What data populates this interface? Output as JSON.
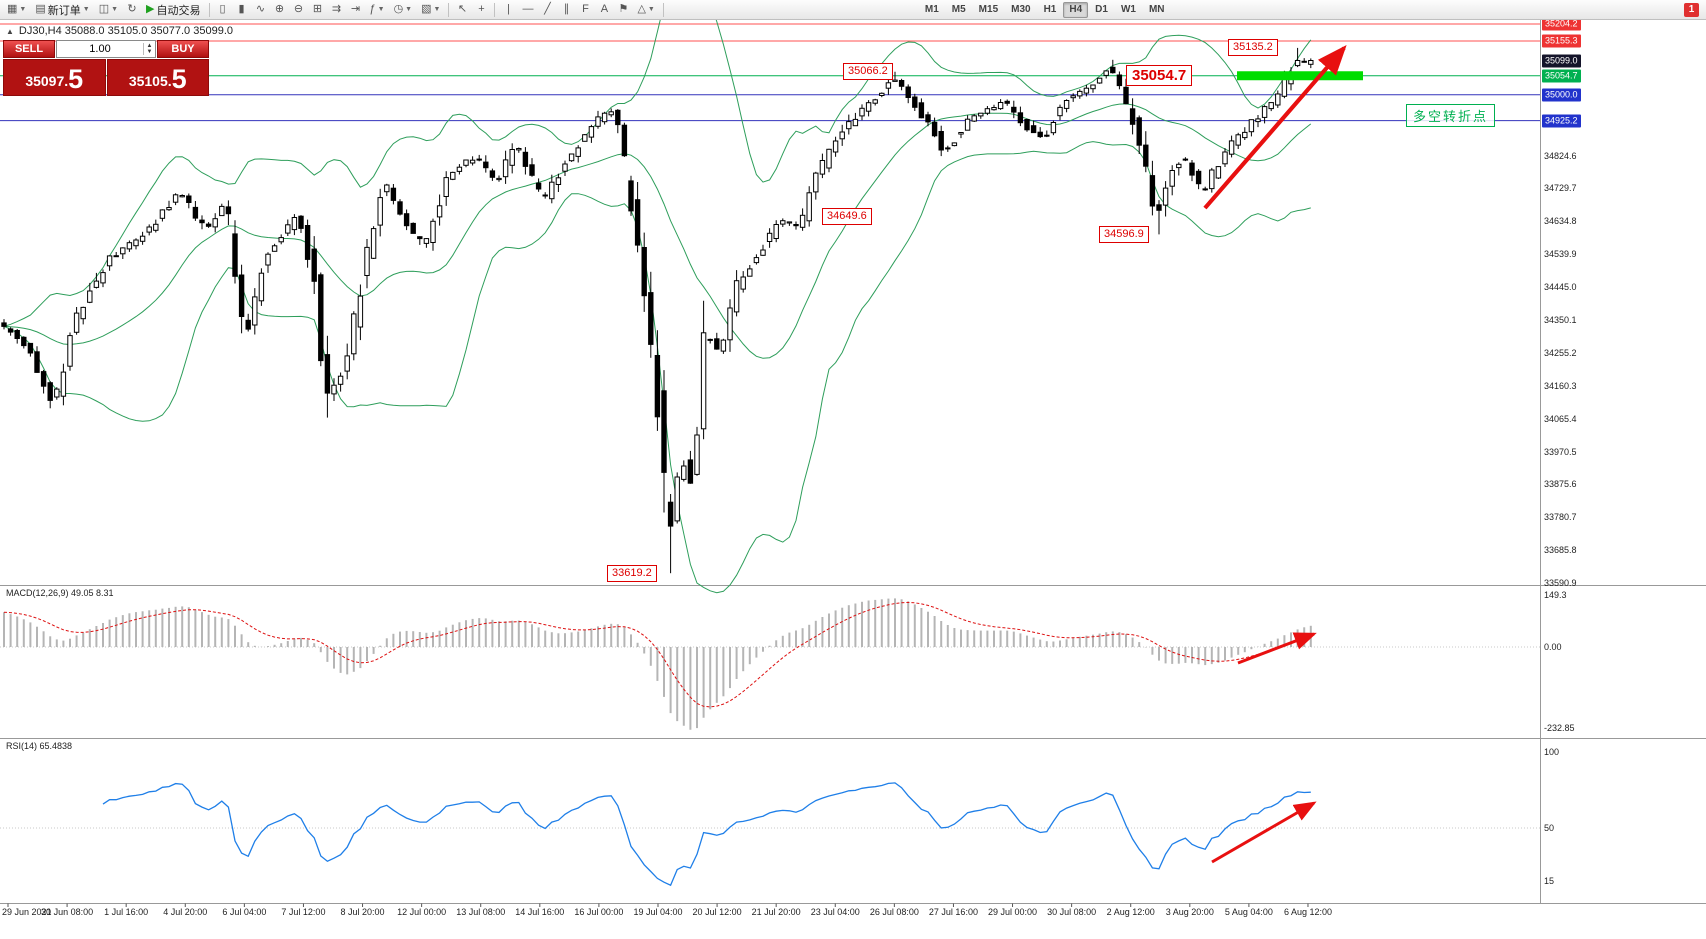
{
  "toolbar": {
    "buttons": [
      {
        "name": "new-chart",
        "glyph": "▦",
        "caret": true
      },
      {
        "name": "new-order",
        "glyph": "▤",
        "label": "新订单",
        "caret": true
      },
      {
        "name": "profiles",
        "glyph": "◫",
        "caret": true
      },
      {
        "name": "refresh",
        "glyph": "↻",
        "caret": false
      },
      {
        "name": "auto-trading",
        "glyph": "▶",
        "label": "自动交易",
        "caret": false,
        "green": true
      },
      {
        "sep": true
      },
      {
        "name": "bars-chart",
        "glyph": "▯",
        "caret": false
      },
      {
        "name": "candles-chart",
        "glyph": "▮",
        "caret": false
      },
      {
        "name": "line-chart",
        "glyph": "∿",
        "caret": false
      },
      {
        "name": "zoom-in",
        "glyph": "⊕",
        "caret": false
      },
      {
        "name": "zoom-out",
        "glyph": "⊖",
        "caret": false
      },
      {
        "name": "tile-windows",
        "glyph": "⊞",
        "caret": false
      },
      {
        "name": "auto-scroll",
        "glyph": "⇉",
        "caret": false
      },
      {
        "name": "chart-shift",
        "glyph": "⇥",
        "caret": false
      },
      {
        "name": "indicators",
        "glyph": "ƒ",
        "caret": true
      },
      {
        "name": "periods",
        "glyph": "◷",
        "caret": true
      },
      {
        "name": "templates",
        "glyph": "▧",
        "caret": true
      },
      {
        "sep": true
      },
      {
        "name": "cursor",
        "glyph": "↖",
        "caret": false
      },
      {
        "name": "crosshair",
        "glyph": "+",
        "caret": false
      },
      {
        "sep": true
      },
      {
        "name": "vertical-line",
        "glyph": "|",
        "caret": false
      },
      {
        "name": "horizontal-line",
        "glyph": "—",
        "caret": false
      },
      {
        "name": "trendline",
        "glyph": "╱",
        "caret": false
      },
      {
        "name": "channel",
        "glyph": "∥",
        "caret": false
      },
      {
        "name": "fibonacci",
        "glyph": "F",
        "caret": false
      },
      {
        "name": "text",
        "glyph": "A",
        "caret": false
      },
      {
        "name": "label-flag",
        "glyph": "⚑",
        "caret": false
      },
      {
        "name": "shapes",
        "glyph": "△",
        "caret": true
      },
      {
        "sep": true
      }
    ],
    "timeframes": [
      "M1",
      "M5",
      "M15",
      "M30",
      "H1",
      "H4",
      "D1",
      "W1",
      "MN"
    ],
    "active_timeframe": "H4",
    "alert_badge": "1"
  },
  "chart": {
    "title_line": "DJ30,H4 35088.0 35105.0 35077.0 35099.0",
    "symbol": "DJ30,H4",
    "open": "35088.0",
    "high": "35105.0",
    "low": "35077.0",
    "close": "35099.0"
  },
  "trade_panel": {
    "sell_label": "SELL",
    "buy_label": "BUY",
    "volume": "1.00",
    "sell_price_main": "35097.",
    "sell_price_big": "5",
    "buy_price_main": "35105.",
    "buy_price_big": "5"
  },
  "annotations": {
    "labels": [
      "35135.2",
      "35066.2",
      "35054.7",
      "34649.6",
      "34596.9",
      "33619.2"
    ],
    "turning_point": "多空转折点"
  },
  "price_axis": {
    "special": [
      {
        "value": "35204.2",
        "price": 35204.2,
        "type": "red"
      },
      {
        "value": "35155.3",
        "price": 35155.3,
        "type": "red"
      },
      {
        "value": "35099.0",
        "price": 35099.0,
        "type": "current"
      },
      {
        "value": "35054.7",
        "price": 35054.7,
        "type": "green"
      },
      {
        "value": "35000.0",
        "price": 35000.0,
        "type": "blue"
      },
      {
        "value": "34925.2",
        "price": 34925.2,
        "type": "blue"
      }
    ],
    "gridlines": [
      "34824.6",
      "34729.7",
      "34634.8",
      "34539.9",
      "34445.0",
      "34350.1",
      "34255.2",
      "34160.3",
      "34065.4",
      "33970.5",
      "33875.6",
      "33780.7",
      "33685.8",
      "33590.9"
    ]
  },
  "macd_panel": {
    "label": "MACD(12,26,9) 49.05 8.31",
    "axis": [
      "149.3",
      "0.00",
      "-232.85"
    ]
  },
  "rsi_panel": {
    "label": "RSI(14) 65.4838",
    "axis": [
      "100",
      "50",
      "15"
    ]
  },
  "time_axis": [
    "29 Jun 2021",
    "30 Jun 08:00",
    "1 Jul 16:00",
    "4 Jul 20:00",
    "6 Jul 04:00",
    "7 Jul 12:00",
    "8 Jul 20:00",
    "12 Jul 00:00",
    "13 Jul 08:00",
    "14 Jul 16:00",
    "16 Jul 00:00",
    "19 Jul 04:00",
    "20 Jul 12:00",
    "21 Jul 20:00",
    "23 Jul 04:00",
    "26 Jul 08:00",
    "27 Jul 16:00",
    "29 Jul 00:00",
    "30 Jul 08:00",
    "2 Aug 12:00",
    "3 Aug 20:00",
    "5 Aug 04:00",
    "6 Aug 12:00"
  ],
  "chart_data": {
    "type": "candlestick",
    "symbol": "DJ30",
    "timeframe": "H4",
    "candle_count": 199,
    "current_bar": {
      "open": 35088.0,
      "high": 35105.0,
      "low": 35077.0,
      "close": 35099.0
    },
    "key_levels": {
      "resistance_red": [
        35204.2,
        35155.3
      ],
      "green_level": 35054.7,
      "support_blue": [
        35000.0,
        34925.2
      ],
      "current_price": 35099.0
    },
    "swing_points": [
      {
        "label": 35135.2,
        "bar": 196,
        "kind": "high"
      },
      {
        "label": 35066.2,
        "bar": 135,
        "kind": "high"
      },
      {
        "label": 34649.6,
        "bar": 124,
        "kind": "low"
      },
      {
        "label": 34596.9,
        "bar": 175,
        "kind": "low"
      },
      {
        "label": 33619.2,
        "bar": 101,
        "kind": "low"
      }
    ],
    "indicators": {
      "bollinger": {
        "period": 20,
        "deviation": 2
      },
      "macd": {
        "fast": 12,
        "slow": 26,
        "signal": 9,
        "values": [
          49.05,
          8.31
        ]
      },
      "rsi": {
        "period": 14,
        "value": 65.4838
      }
    },
    "waypoints": [
      [
        0,
        34340
      ],
      [
        4,
        34270
      ],
      [
        8,
        34110
      ],
      [
        11,
        34340
      ],
      [
        16,
        34520
      ],
      [
        22,
        34600
      ],
      [
        27,
        34720
      ],
      [
        31,
        34610
      ],
      [
        34,
        34700
      ],
      [
        37,
        34290
      ],
      [
        40,
        34540
      ],
      [
        45,
        34650
      ],
      [
        48,
        34420
      ],
      [
        49,
        34110
      ],
      [
        52,
        34210
      ],
      [
        56,
        34590
      ],
      [
        58,
        34750
      ],
      [
        61,
        34640
      ],
      [
        64,
        34560
      ],
      [
        68,
        34780
      ],
      [
        72,
        34820
      ],
      [
        75,
        34740
      ],
      [
        78,
        34860
      ],
      [
        82,
        34690
      ],
      [
        85,
        34790
      ],
      [
        88,
        34870
      ],
      [
        91,
        34940
      ],
      [
        93,
        34960
      ],
      [
        94,
        34850
      ],
      [
        96,
        34610
      ],
      [
        98,
        34390
      ],
      [
        100,
        34010
      ],
      [
        101,
        33700
      ],
      [
        102,
        33860
      ],
      [
        104,
        33950
      ],
      [
        105,
        33790
      ],
      [
        106,
        34280
      ],
      [
        108,
        34300
      ],
      [
        109,
        34240
      ],
      [
        111,
        34430
      ],
      [
        114,
        34520
      ],
      [
        118,
        34640
      ],
      [
        121,
        34620
      ],
      [
        123,
        34750
      ],
      [
        126,
        34850
      ],
      [
        129,
        34930
      ],
      [
        132,
        34980
      ],
      [
        135,
        35050
      ],
      [
        138,
        34980
      ],
      [
        141,
        34900
      ],
      [
        143,
        34830
      ],
      [
        146,
        34920
      ],
      [
        149,
        34950
      ],
      [
        152,
        34980
      ],
      [
        155,
        34910
      ],
      [
        158,
        34870
      ],
      [
        161,
        34980
      ],
      [
        164,
        35010
      ],
      [
        167,
        35060
      ],
      [
        168,
        35090
      ],
      [
        171,
        34950
      ],
      [
        173,
        34820
      ],
      [
        175,
        34650
      ],
      [
        177,
        34760
      ],
      [
        179,
        34830
      ],
      [
        182,
        34710
      ],
      [
        184,
        34790
      ],
      [
        187,
        34870
      ],
      [
        190,
        34930
      ],
      [
        193,
        34990
      ],
      [
        196,
        35090
      ],
      [
        198,
        35099
      ]
    ],
    "pins": [
      {
        "i": 101,
        "low": 33619.2
      },
      {
        "i": 135,
        "high": 35066.2
      },
      {
        "i": 168,
        "high": 35101.0
      },
      {
        "i": 175,
        "low": 34596.9
      },
      {
        "i": 196,
        "high": 35135.2
      },
      {
        "i": 198,
        "open": 35088.0,
        "high": 35105.0,
        "low": 35077.0,
        "close": 35099.0
      }
    ]
  }
}
